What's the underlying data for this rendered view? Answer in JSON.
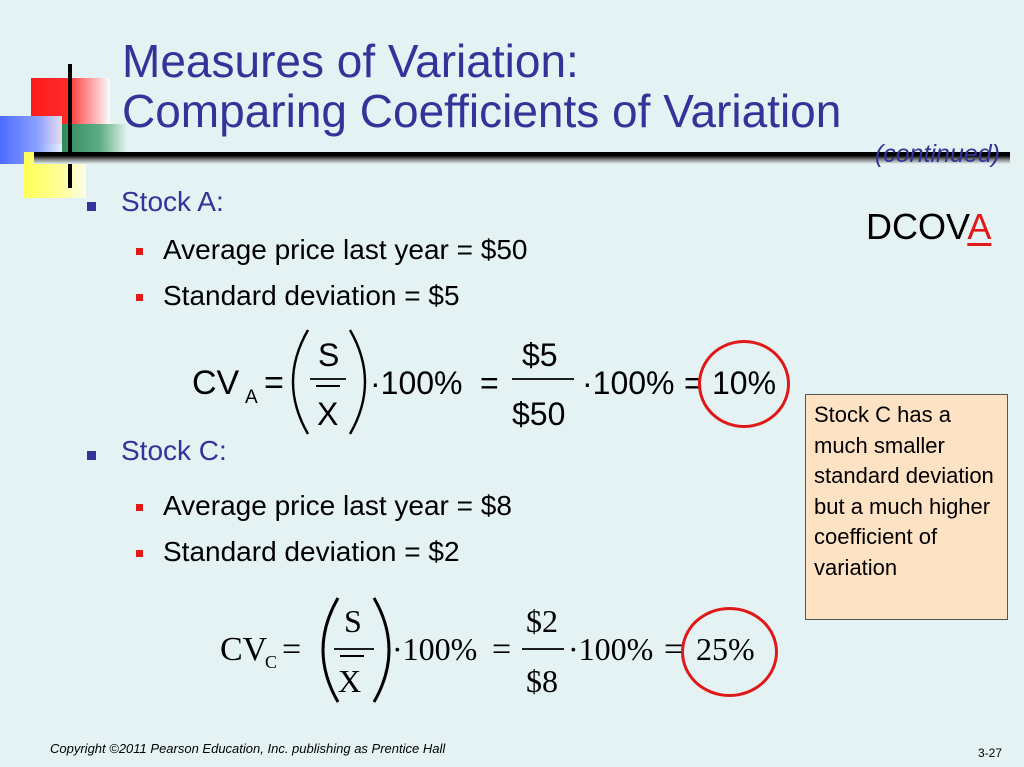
{
  "title": {
    "line1": "Measures of Variation:",
    "line2": "Comparing Coefficients of Variation"
  },
  "continued": "(continued)",
  "dcova": {
    "prefix": "DCOV",
    "highlight": "A"
  },
  "stock_a": {
    "label": "Stock A:",
    "items": [
      "Average price last year = $50",
      "Standard deviation = $5"
    ],
    "formula": {
      "lhs": "CV",
      "sub": "A",
      "eq": "=",
      "num": "S",
      "den": "X",
      "times": "·100%",
      "eq2": "=",
      "num2": "$5",
      "den2": "$50",
      "times2": "·100%",
      "eq3": "=",
      "result": "10%"
    }
  },
  "stock_c": {
    "label": "Stock C:",
    "items": [
      "Average price last year = $8",
      "Standard deviation = $2"
    ],
    "formula": {
      "lhs": "CV",
      "sub": "C",
      "eq": "=",
      "num": "S",
      "den": "X",
      "times": "·100%",
      "eq2": "=",
      "num2": "$2",
      "den2": "$8",
      "times2": "·100%",
      "eq3": "=",
      "result": "25%"
    }
  },
  "note": "Stock C has a much smaller standard deviation but a much higher coefficient of variation",
  "footer": {
    "copyright": "Copyright ©2011 Pearson Education, Inc. publishing as Prentice Hall",
    "slide_number": "3-27"
  },
  "colors": {
    "title": "#333399",
    "accent": "#e01818",
    "background": "#e4f2f4",
    "note_fill": "#fde2c4"
  }
}
